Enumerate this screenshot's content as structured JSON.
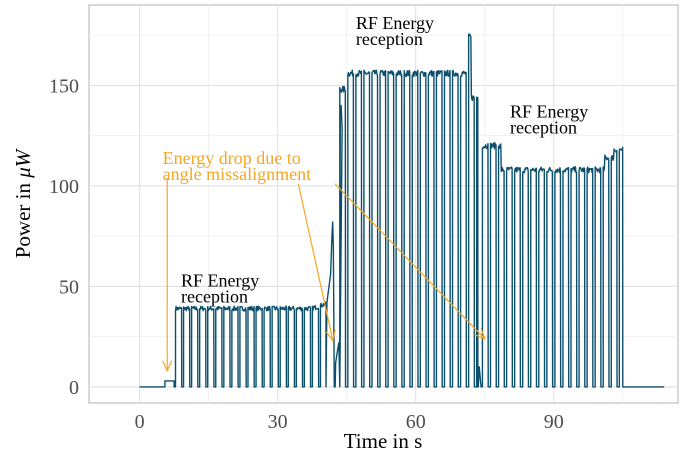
{
  "chart_data": {
    "type": "line",
    "xlabel": "Time in s",
    "ylabel_prefix": "Power in ",
    "ylabel_unit": "μW",
    "xlim": [
      -11,
      117
    ],
    "ylim": [
      -8,
      190
    ],
    "x_ticks": [
      0,
      30,
      60,
      90
    ],
    "y_ticks": [
      0,
      50,
      100,
      150
    ],
    "grid": true,
    "line_color": "#0b4f6c",
    "annotation_color": "#f5a623",
    "segments": [
      {
        "label": "off",
        "start": 0,
        "end": 5.5,
        "level": 0
      },
      {
        "label": "step",
        "start": 5.5,
        "end": 7.5,
        "level": 3
      },
      {
        "label": "reception-1",
        "start": 7.8,
        "end": 40.5,
        "level": 39,
        "period": 1.75,
        "off_width": 0.4
      },
      {
        "label": "spike",
        "start": 40.5,
        "end": 43.5,
        "peak": 82,
        "low": 22
      },
      {
        "label": "reception-2",
        "start": 43.5,
        "end": 73.5,
        "level": 156,
        "period": 1.75,
        "off_width": 0.5
      },
      {
        "label": "reception-3",
        "start": 74.5,
        "end": 105,
        "level": 108,
        "period": 1.75,
        "off_width": 0.5
      },
      {
        "label": "off-end",
        "start": 105,
        "end": 114,
        "level": 0
      }
    ],
    "annotations": [
      {
        "kind": "label",
        "lines": [
          "RF Energy",
          "reception"
        ],
        "x": 9,
        "y": 50
      },
      {
        "kind": "label",
        "lines": [
          "RF Energy",
          "reception"
        ],
        "x": 47,
        "y": 178
      },
      {
        "kind": "label",
        "lines": [
          "RF Energy",
          "reception"
        ],
        "x": 80.5,
        "y": 134
      },
      {
        "kind": "note",
        "lines": [
          "Energy drop due to",
          "angle missalignment"
        ],
        "x": 5,
        "y": 111
      }
    ],
    "arrows": [
      {
        "from": [
          6,
          104
        ],
        "to": [
          6,
          8
        ]
      },
      {
        "from": [
          34.5,
          101
        ],
        "to": [
          42,
          23
        ]
      },
      {
        "from": [
          42.5,
          101
        ],
        "to": [
          75,
          24
        ]
      }
    ]
  }
}
